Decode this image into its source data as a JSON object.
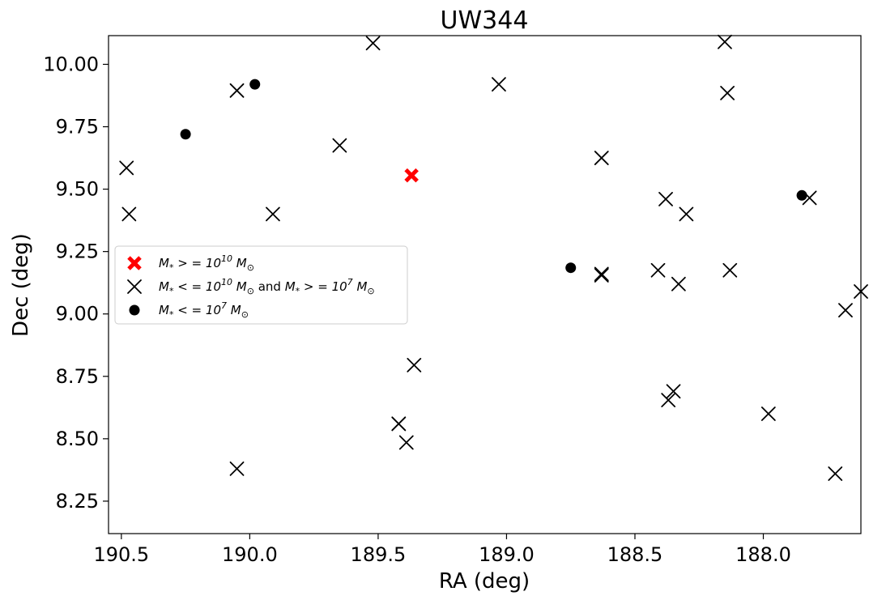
{
  "chart_data": {
    "type": "scatter",
    "title": "UW344",
    "xlabel": "RA (deg)",
    "ylabel": "Dec (deg)",
    "xlim": [
      190.55,
      187.62
    ],
    "ylim": [
      8.12,
      10.115
    ],
    "x_inverted": true,
    "grid": false,
    "legend_position": "center-left",
    "xticks": [
      "190.5",
      "190.0",
      "189.5",
      "189.0",
      "188.5",
      "188.0"
    ],
    "yticks": [
      "8.25",
      "8.50",
      "8.75",
      "9.00",
      "9.25",
      "9.50",
      "9.75",
      "10.00"
    ],
    "series": [
      {
        "name": "M* >= 10^10 Msun",
        "marker": "bold-x",
        "color": "#ff0000",
        "points": [
          {
            "x": 189.37,
            "y": 9.555
          }
        ]
      },
      {
        "name": "M* <= 10^10 Msun and M* >= 10^7 Msun",
        "marker": "x",
        "color": "#000000",
        "points": [
          {
            "x": 190.48,
            "y": 9.585
          },
          {
            "x": 190.47,
            "y": 9.4
          },
          {
            "x": 190.05,
            "y": 9.895
          },
          {
            "x": 190.05,
            "y": 8.38
          },
          {
            "x": 189.91,
            "y": 9.4
          },
          {
            "x": 189.65,
            "y": 9.675
          },
          {
            "x": 189.52,
            "y": 10.085
          },
          {
            "x": 189.42,
            "y": 8.56
          },
          {
            "x": 189.42,
            "y": 8.56
          },
          {
            "x": 189.39,
            "y": 8.485
          },
          {
            "x": 189.36,
            "y": 8.795
          },
          {
            "x": 189.03,
            "y": 9.92
          },
          {
            "x": 188.63,
            "y": 9.625
          },
          {
            "x": 188.63,
            "y": 9.155
          },
          {
            "x": 188.63,
            "y": 9.16
          },
          {
            "x": 188.41,
            "y": 9.175
          },
          {
            "x": 188.38,
            "y": 9.46
          },
          {
            "x": 188.37,
            "y": 8.655
          },
          {
            "x": 188.35,
            "y": 8.69
          },
          {
            "x": 188.33,
            "y": 9.12
          },
          {
            "x": 188.3,
            "y": 9.4
          },
          {
            "x": 188.15,
            "y": 10.09
          },
          {
            "x": 188.14,
            "y": 9.885
          },
          {
            "x": 188.13,
            "y": 9.175
          },
          {
            "x": 187.98,
            "y": 8.6
          },
          {
            "x": 187.82,
            "y": 9.465
          },
          {
            "x": 187.72,
            "y": 8.36
          },
          {
            "x": 187.68,
            "y": 9.015
          },
          {
            "x": 187.62,
            "y": 9.09
          }
        ]
      },
      {
        "name": "M* <= 10^7 Msun",
        "marker": "circle",
        "color": "#000000",
        "points": [
          {
            "x": 190.25,
            "y": 9.72
          },
          {
            "x": 189.98,
            "y": 9.92
          },
          {
            "x": 188.75,
            "y": 9.185
          },
          {
            "x": 187.85,
            "y": 9.475
          }
        ]
      }
    ]
  }
}
